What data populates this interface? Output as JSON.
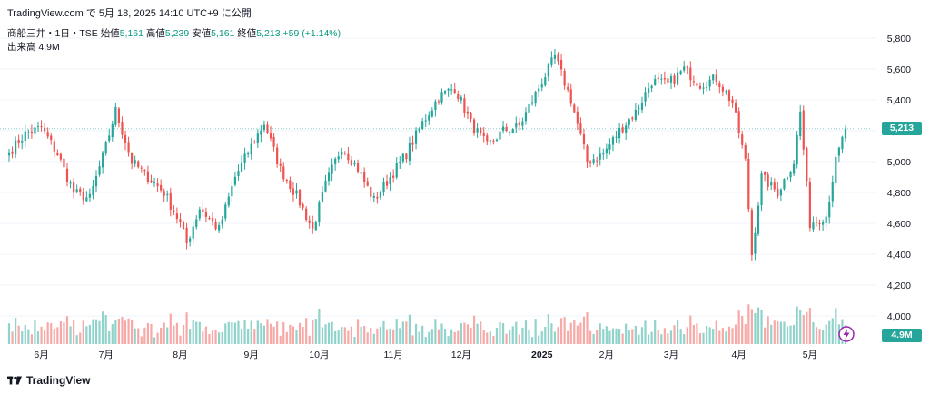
{
  "header": {
    "caption": "TradingView.com で 5月 18, 2025 14:10 UTC+9 に公開"
  },
  "legend": {
    "symbol": "商船三井・1日・TSE",
    "open_label": "始値",
    "open": "5,161",
    "high_label": "高値",
    "high": "5,239",
    "low_label": "安値",
    "low": "5,161",
    "close_label": "終値",
    "close": "5,213",
    "change": "+59 (+1.14%)",
    "volume_label": "出来高",
    "volume": "4.9M"
  },
  "footer": {
    "brand": "TradingView"
  },
  "colors": {
    "up": "#26a69a",
    "down": "#ef5350",
    "vol_up": "#8fd3cb",
    "vol_down": "#f7a9a7",
    "price_line": "#26a69a"
  },
  "chart_data": {
    "type": "candlestick",
    "title": "商船三井・1日・TSE",
    "y_axis": {
      "ticks": [
        4000,
        4200,
        4400,
        4600,
        4800,
        5000,
        5200,
        5400,
        5600,
        5800
      ],
      "tick_labels": [
        "4,000",
        "4,200",
        "4,400",
        "4,600",
        "4,800",
        "5,000",
        "5,200",
        "5,400",
        "5,600",
        "5,800"
      ],
      "range": [
        3850,
        5900
      ]
    },
    "x_axis": {
      "labels": [
        "6月",
        "7月",
        "8月",
        "9月",
        "10月",
        "11月",
        "12月",
        "2025",
        "2月",
        "3月",
        "4月",
        "5月"
      ]
    },
    "last_price": "5,213",
    "last_volume": "4.9M",
    "series": [
      {
        "name": "price",
        "anchor_points": [
          [
            "2024-05-20",
            5060
          ],
          [
            "2024-05-27",
            5180
          ],
          [
            "2024-06-03",
            5220
          ],
          [
            "2024-06-10",
            5050
          ],
          [
            "2024-06-17",
            4800
          ],
          [
            "2024-06-24",
            4760
          ],
          [
            "2024-07-01",
            5100
          ],
          [
            "2024-07-04",
            5330
          ],
          [
            "2024-07-11",
            5000
          ],
          [
            "2024-07-18",
            4900
          ],
          [
            "2024-07-25",
            4800
          ],
          [
            "2024-08-01",
            4600
          ],
          [
            "2024-08-05",
            4470
          ],
          [
            "2024-08-09",
            4700
          ],
          [
            "2024-08-19",
            4560
          ],
          [
            "2024-08-26",
            4900
          ],
          [
            "2024-09-02",
            5100
          ],
          [
            "2024-09-06",
            5250
          ],
          [
            "2024-09-13",
            4950
          ],
          [
            "2024-09-20",
            4780
          ],
          [
            "2024-09-27",
            4560
          ],
          [
            "2024-10-03",
            4850
          ],
          [
            "2024-10-10",
            5100
          ],
          [
            "2024-10-17",
            4950
          ],
          [
            "2024-10-24",
            4750
          ],
          [
            "2024-10-31",
            4900
          ],
          [
            "2024-11-07",
            5050
          ],
          [
            "2024-11-14",
            5250
          ],
          [
            "2024-11-21",
            5420
          ],
          [
            "2024-11-28",
            5480
          ],
          [
            "2024-12-05",
            5250
          ],
          [
            "2024-12-12",
            5100
          ],
          [
            "2024-12-19",
            5200
          ],
          [
            "2024-12-26",
            5230
          ],
          [
            "2025-01-06",
            5520
          ],
          [
            "2025-01-10",
            5680
          ],
          [
            "2025-01-17",
            5400
          ],
          [
            "2025-01-24",
            5000
          ],
          [
            "2025-01-31",
            5050
          ],
          [
            "2025-02-07",
            5200
          ],
          [
            "2025-02-14",
            5320
          ],
          [
            "2025-02-21",
            5520
          ],
          [
            "2025-02-28",
            5500
          ],
          [
            "2025-03-07",
            5600
          ],
          [
            "2025-03-14",
            5500
          ],
          [
            "2025-03-21",
            5540
          ],
          [
            "2025-03-28",
            5380
          ],
          [
            "2025-04-03",
            5000
          ],
          [
            "2025-04-07",
            4400
          ],
          [
            "2025-04-10",
            4900
          ],
          [
            "2025-04-17",
            4800
          ],
          [
            "2025-04-24",
            5000
          ],
          [
            "2025-04-28",
            5320
          ],
          [
            "2025-05-01",
            4600
          ],
          [
            "2025-05-08",
            4650
          ],
          [
            "2025-05-13",
            5000
          ],
          [
            "2025-05-16",
            5213
          ]
        ]
      }
    ]
  }
}
